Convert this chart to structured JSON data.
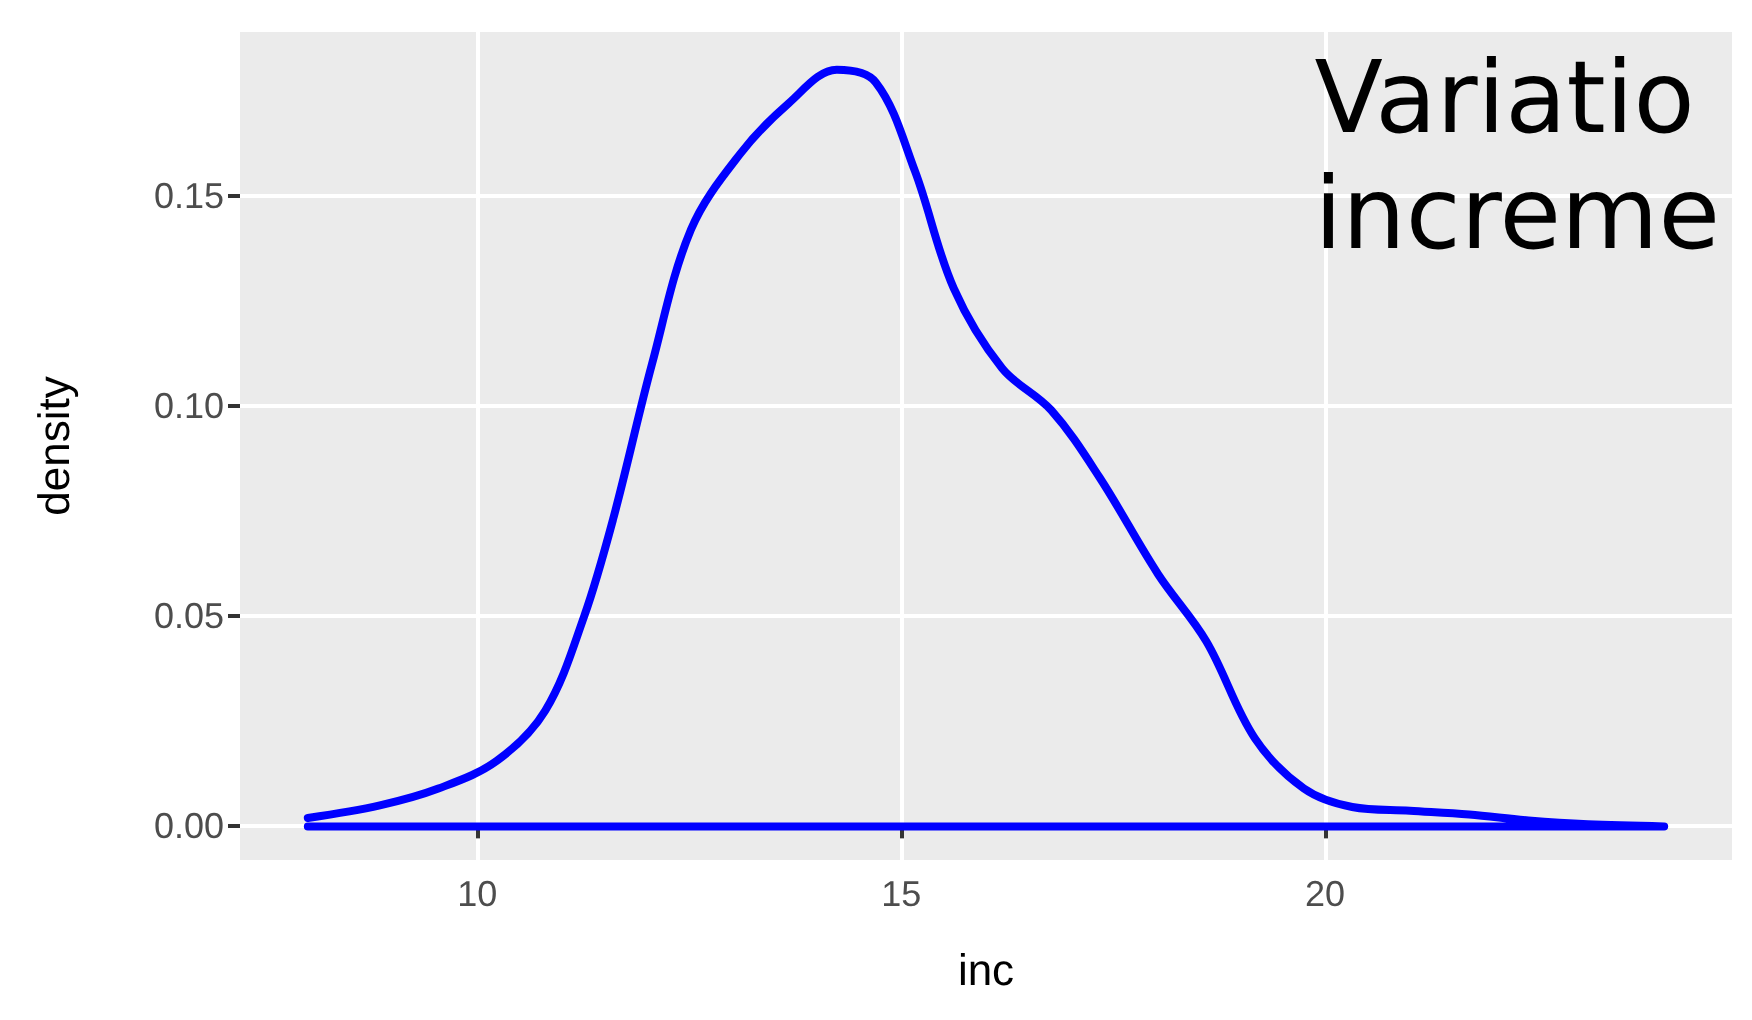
{
  "chart_data": {
    "type": "line",
    "xlabel": "inc",
    "ylabel": "density",
    "annotations": [
      "Variatio\nincreme"
    ],
    "xlim": [
      7.2,
      24.8
    ],
    "xticks": [
      10,
      15,
      20
    ],
    "ylim": [
      -0.008,
      0.189
    ],
    "yticks": [
      {
        "value": 0,
        "label": "0.00"
      },
      {
        "value": 0.05,
        "label": "0.05"
      },
      {
        "value": 0.1,
        "label": "0.10"
      },
      {
        "value": 0.15,
        "label": "0.15"
      }
    ],
    "grid": true,
    "marker": "none",
    "line_style": "solid",
    "series": [
      {
        "color": "#0000ff",
        "x": [
          8.0,
          8.85,
          9.54,
          10.23,
          10.8,
          11.26,
          11.6,
          12.06,
          12.52,
          13.1,
          13.67,
          14.24,
          14.7,
          15.16,
          15.62,
          16.19,
          16.77,
          17.34,
          18.03,
          18.6,
          19.17,
          19.75,
          20.32,
          21.0,
          21.7,
          22.4,
          23.1,
          24.0,
          8.0
        ],
        "values": [
          0.002,
          0.005,
          0.009,
          0.0156,
          0.0275,
          0.05,
          0.073,
          0.11,
          0.142,
          0.16,
          0.172,
          0.18,
          0.177,
          0.156,
          0.128,
          0.109,
          0.099,
          0.083,
          0.06,
          0.044,
          0.021,
          0.009,
          0.0046,
          0.0037,
          0.0028,
          0.0014,
          0.0005,
          0,
          0
        ]
      }
    ]
  }
}
